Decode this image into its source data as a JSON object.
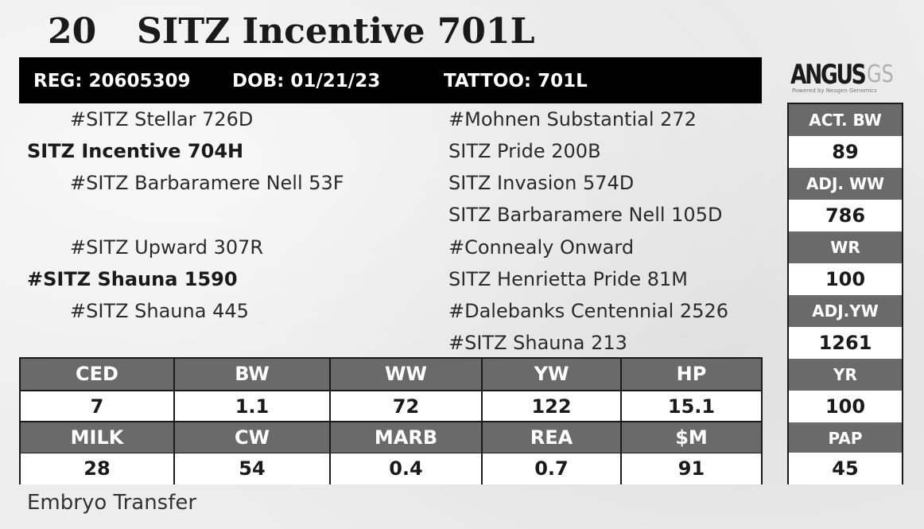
{
  "lot": {
    "number": "20",
    "name": "SITZ Incentive 701L"
  },
  "ids": {
    "reg": "REG: 20605309",
    "dob": "DOB: 01/21/23",
    "tattoo": "TATTOO: 701L"
  },
  "logo": {
    "main": "ANGUS",
    "suffix": "GS",
    "tagline": "Powered by Neogen Genomics"
  },
  "pedigree": {
    "sire": "SITZ Incentive 704H",
    "sire_sire": "#SITZ Stellar 726D",
    "sire_dam": "#SITZ Barbaramere Nell 53F",
    "sire_sire_sire": "#Mohnen Substantial 272",
    "sire_sire_dam": "SITZ Pride 200B",
    "sire_dam_sire": "SITZ Invasion 574D",
    "sire_dam_dam": "SITZ Barbaramere Nell 105D",
    "dam": "#SITZ Shauna 1590",
    "dam_sire": "#SITZ Upward 307R",
    "dam_dam": "#SITZ Shauna 445",
    "dam_sire_sire": "#Connealy Onward",
    "dam_sire_dam": "SITZ Henrietta Pride 81M",
    "dam_dam_sire": "#Dalebanks Centennial 2526",
    "dam_dam_dam": "#SITZ Shauna 213"
  },
  "side_stats": [
    {
      "label": "ACT. BW",
      "value": "89"
    },
    {
      "label": "ADJ. WW",
      "value": "786"
    },
    {
      "label": "WR",
      "value": "100"
    },
    {
      "label": "ADJ.YW",
      "value": "1261"
    },
    {
      "label": "YR",
      "value": "100"
    },
    {
      "label": "PAP",
      "value": "45"
    }
  ],
  "epds": {
    "row1": [
      {
        "label": "CED",
        "value": "7"
      },
      {
        "label": "BW",
        "value": "1.1"
      },
      {
        "label": "WW",
        "value": "72"
      },
      {
        "label": "YW",
        "value": "122"
      },
      {
        "label": "HP",
        "value": "15.1"
      }
    ],
    "row2": [
      {
        "label": "MILK",
        "value": "28"
      },
      {
        "label": "CW",
        "value": "54"
      },
      {
        "label": "MARB",
        "value": "0.4"
      },
      {
        "label": "REA",
        "value": "0.7"
      },
      {
        "label": "$M",
        "value": "91"
      }
    ]
  },
  "footnote": "Embryo Transfer"
}
